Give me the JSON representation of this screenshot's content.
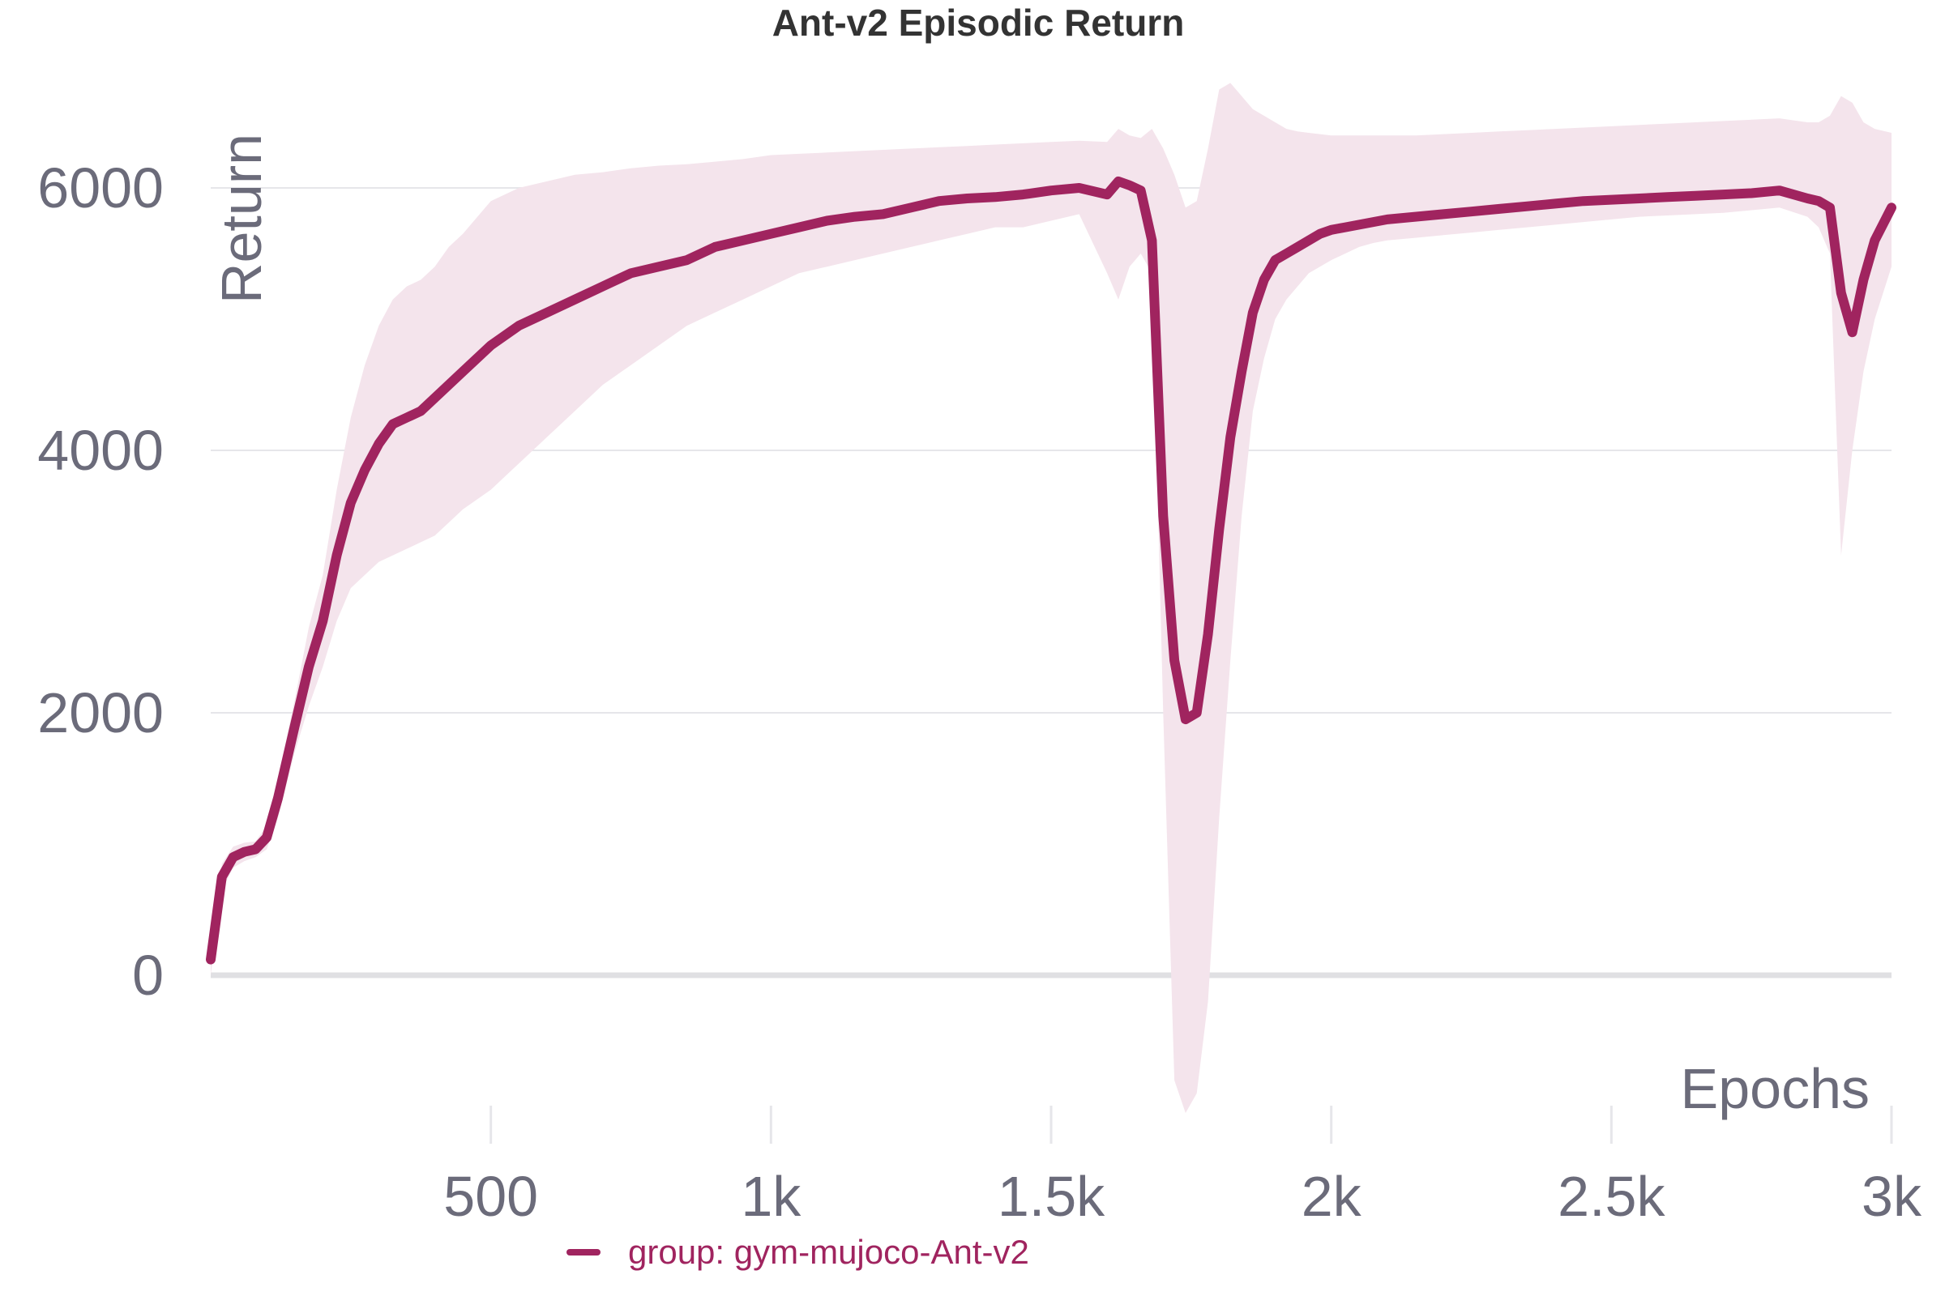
{
  "chart_data": {
    "type": "line",
    "title": "Ant-v2 Episodic Return",
    "xlabel": "Epochs",
    "ylabel": "Return",
    "xlim": [
      0,
      3000
    ],
    "ylim": [
      -1200,
      6800
    ],
    "x_ticks": [
      {
        "value": 500,
        "label": "500"
      },
      {
        "value": 1000,
        "label": "1k"
      },
      {
        "value": 1500,
        "label": "1.5k"
      },
      {
        "value": 2000,
        "label": "2k"
      },
      {
        "value": 2500,
        "label": "2.5k"
      },
      {
        "value": 3000,
        "label": "3k"
      }
    ],
    "y_ticks": [
      {
        "value": 0,
        "label": "0"
      },
      {
        "value": 2000,
        "label": "2000"
      },
      {
        "value": 4000,
        "label": "4000"
      },
      {
        "value": 6000,
        "label": "6000"
      }
    ],
    "grid": true,
    "legend_position": "bottom",
    "colors": {
      "line": "#a0245f",
      "band": "#f4e4ec",
      "grid": "#e6e6ea",
      "zero": "#e0e0e3"
    },
    "series": [
      {
        "name": "group: gym-mujoco-Ant-v2",
        "x": [
          0,
          20,
          40,
          60,
          80,
          100,
          120,
          150,
          175,
          200,
          225,
          250,
          275,
          300,
          325,
          350,
          375,
          400,
          425,
          450,
          500,
          550,
          600,
          650,
          700,
          750,
          800,
          850,
          900,
          950,
          1000,
          1050,
          1100,
          1150,
          1200,
          1250,
          1300,
          1350,
          1400,
          1450,
          1500,
          1550,
          1600,
          1620,
          1640,
          1660,
          1680,
          1700,
          1720,
          1740,
          1760,
          1780,
          1800,
          1820,
          1840,
          1860,
          1880,
          1900,
          1920,
          1940,
          1960,
          1980,
          2000,
          2025,
          2050,
          2075,
          2100,
          2150,
          2200,
          2250,
          2300,
          2350,
          2400,
          2450,
          2500,
          2550,
          2600,
          2650,
          2700,
          2750,
          2800,
          2850,
          2870,
          2890,
          2910,
          2930,
          2950,
          2970,
          3000
        ],
        "y": [
          120,
          750,
          900,
          940,
          960,
          1050,
          1350,
          1900,
          2350,
          2700,
          3200,
          3600,
          3850,
          4050,
          4200,
          4250,
          4300,
          4400,
          4500,
          4600,
          4800,
          4950,
          5050,
          5150,
          5250,
          5350,
          5400,
          5450,
          5550,
          5600,
          5650,
          5700,
          5750,
          5780,
          5800,
          5850,
          5900,
          5920,
          5930,
          5950,
          5980,
          6000,
          5950,
          6050,
          6020,
          5980,
          5600,
          3500,
          2400,
          1950,
          2000,
          2600,
          3400,
          4100,
          4600,
          5050,
          5300,
          5450,
          5500,
          5550,
          5600,
          5650,
          5680,
          5700,
          5720,
          5740,
          5760,
          5780,
          5800,
          5820,
          5840,
          5860,
          5880,
          5900,
          5910,
          5920,
          5930,
          5940,
          5950,
          5960,
          5980,
          5920,
          5900,
          5850,
          5200,
          4900,
          5300,
          5600,
          5850
        ],
        "lower": [
          0,
          650,
          820,
          870,
          900,
          960,
          1200,
          1700,
          2050,
          2350,
          2700,
          2950,
          3050,
          3150,
          3200,
          3250,
          3300,
          3350,
          3450,
          3550,
          3700,
          3900,
          4100,
          4300,
          4500,
          4650,
          4800,
          4950,
          5050,
          5150,
          5250,
          5350,
          5400,
          5450,
          5500,
          5550,
          5600,
          5650,
          5700,
          5700,
          5750,
          5800,
          5350,
          5150,
          5400,
          5500,
          5350,
          2000,
          -800,
          -1050,
          -900,
          -200,
          1200,
          2400,
          3500,
          4300,
          4700,
          5000,
          5150,
          5250,
          5350,
          5400,
          5450,
          5500,
          5550,
          5580,
          5600,
          5620,
          5640,
          5660,
          5680,
          5700,
          5720,
          5740,
          5760,
          5780,
          5790,
          5800,
          5810,
          5830,
          5850,
          5780,
          5700,
          5500,
          3200,
          4000,
          4600,
          5000,
          5400
        ],
        "upper": [
          240,
          850,
          980,
          1010,
          1020,
          1140,
          1500,
          2100,
          2650,
          3050,
          3700,
          4250,
          4650,
          4950,
          5150,
          5250,
          5300,
          5400,
          5550,
          5650,
          5900,
          6000,
          6050,
          6100,
          6120,
          6150,
          6170,
          6180,
          6200,
          6220,
          6250,
          6260,
          6270,
          6280,
          6290,
          6300,
          6310,
          6320,
          6330,
          6340,
          6350,
          6360,
          6350,
          6450,
          6400,
          6380,
          6450,
          6300,
          6100,
          5850,
          5900,
          6300,
          6750,
          6800,
          6700,
          6600,
          6550,
          6500,
          6450,
          6430,
          6420,
          6410,
          6400,
          6400,
          6400,
          6400,
          6400,
          6400,
          6410,
          6420,
          6430,
          6440,
          6450,
          6460,
          6470,
          6480,
          6490,
          6500,
          6510,
          6520,
          6530,
          6500,
          6500,
          6550,
          6700,
          6650,
          6500,
          6450,
          6420
        ]
      }
    ]
  }
}
